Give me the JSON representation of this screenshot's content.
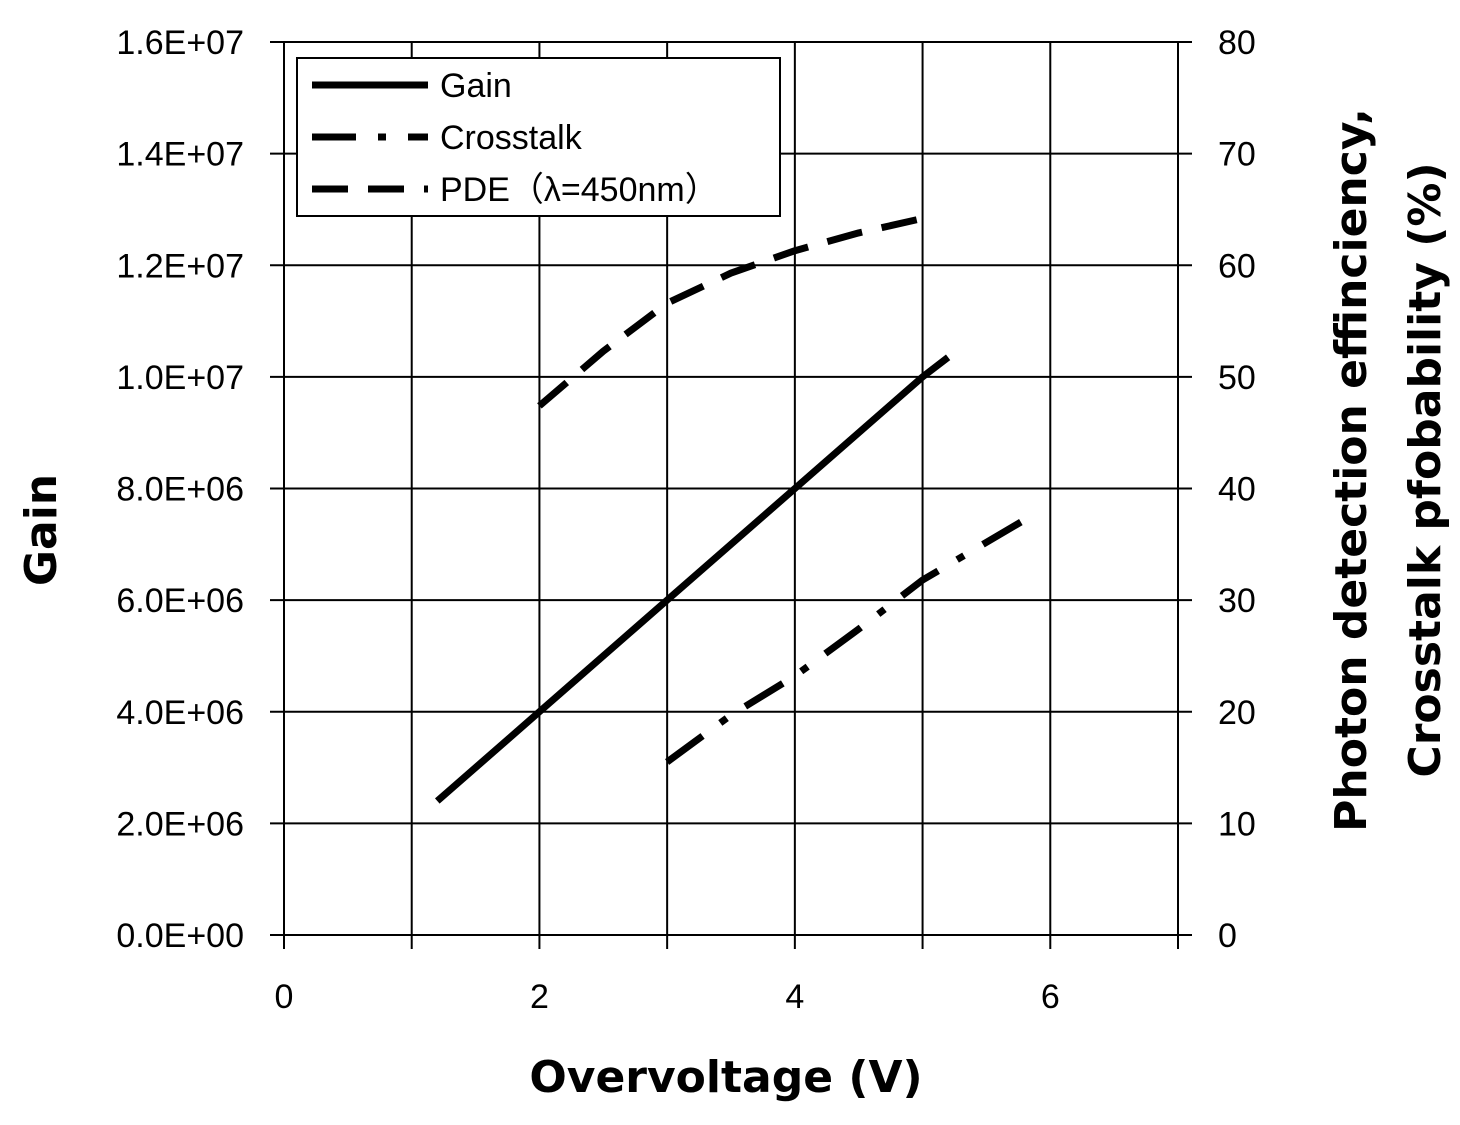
{
  "chart_data": {
    "type": "line",
    "xlabel": "Overvoltage (V)",
    "ylabel": "Gain",
    "y2label_line1": "Photon detection effinciency,",
    "y2label_line2": "Crosstalk pfobability (%)",
    "xlim": [
      0,
      7
    ],
    "ylim": [
      0,
      16000000
    ],
    "y2lim": [
      0,
      80
    ],
    "x_ticks": [
      0,
      2,
      4,
      6
    ],
    "x_tick_labels": [
      "0",
      "2",
      "4",
      "6"
    ],
    "y_tick_labels": [
      "0.0E+00",
      "2.0E+06",
      "4.0E+06",
      "6.0E+06",
      "8.0E+06",
      "1.0E+07",
      "1.2E+07",
      "1.4E+07",
      "1.6E+07"
    ],
    "y2_tick_labels": [
      "0",
      "10",
      "20",
      "30",
      "40",
      "50",
      "60",
      "70",
      "80"
    ],
    "grid": true,
    "legend_position": "top-left",
    "series": [
      {
        "name": "Gain",
        "axis": "left",
        "style": "solid",
        "x": [
          1.2,
          2.0,
          3.0,
          4.0,
          5.0,
          5.2
        ],
        "y": [
          2400000,
          4000000,
          6000000,
          8000000,
          10000000,
          10350000
        ]
      },
      {
        "name": "Crosstalk",
        "axis": "right",
        "style": "dashdot",
        "x": [
          3.0,
          3.5,
          4.0,
          4.5,
          5.0,
          5.8
        ],
        "y": [
          15.5,
          19.7,
          23.2,
          27.4,
          31.8,
          37.2
        ]
      },
      {
        "name": "PDE（λ=450nm）",
        "axis": "right",
        "style": "dashed",
        "x": [
          2.0,
          2.5,
          3.0,
          3.5,
          4.0,
          4.5,
          5.0
        ],
        "y": [
          47.4,
          52.3,
          56.6,
          59.3,
          61.3,
          62.9,
          64.2
        ]
      }
    ],
    "colors": {
      "lines": "#000000",
      "grid": "#000000",
      "background": "#ffffff"
    }
  }
}
